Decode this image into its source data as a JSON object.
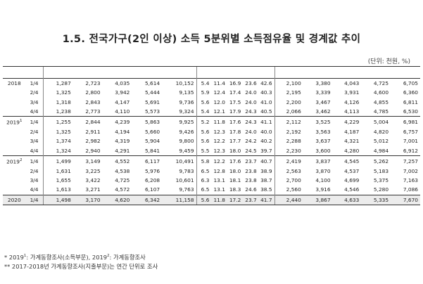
{
  "title": "1.5. 전국가구(2인 이상) 소득 5분위별 소득점유율 및 경계값 추이",
  "unit": "(단위: 천원, %)",
  "rows": [
    {
      "year": "2018",
      "sup": "",
      "qtr": "1/4",
      "vals": [
        "1,287",
        "2,723",
        "4,035",
        "5,614",
        "10,152",
        "5.4",
        "11.4",
        "16.9",
        "23.6",
        "42.6",
        "2,100",
        "3,380",
        "4,043",
        "4,725",
        "6,705"
      ]
    },
    {
      "year": "",
      "sup": "",
      "qtr": "2/4",
      "vals": [
        "1,325",
        "2,800",
        "3,942",
        "5,444",
        "9,135",
        "5.9",
        "12.4",
        "17.4",
        "24.0",
        "40.3",
        "2,195",
        "3,339",
        "3,931",
        "4,600",
        "6,360"
      ]
    },
    {
      "year": "",
      "sup": "",
      "qtr": "3/4",
      "vals": [
        "1,318",
        "2,843",
        "4,147",
        "5,691",
        "9,736",
        "5.6",
        "12.0",
        "17.5",
        "24.0",
        "41.0",
        "2,200",
        "3,467",
        "4,126",
        "4,855",
        "6,811"
      ]
    },
    {
      "year": "",
      "sup": "",
      "qtr": "4/4",
      "vals": [
        "1,238",
        "2,773",
        "4,110",
        "5,573",
        "9,324",
        "5.4",
        "12.1",
        "17.9",
        "24.3",
        "40.5",
        "2,066",
        "3,462",
        "4,113",
        "4,785",
        "6,530"
      ]
    },
    {
      "year": "2019",
      "sup": "1",
      "qtr": "1/4",
      "vals": [
        "1,255",
        "2,844",
        "4,239",
        "5,863",
        "9,925",
        "5.2",
        "11.8",
        "17.6",
        "24.3",
        "41.1",
        "2,112",
        "3,525",
        "4,229",
        "5,004",
        "6,981"
      ]
    },
    {
      "year": "",
      "sup": "",
      "qtr": "2/4",
      "vals": [
        "1,325",
        "2,911",
        "4,194",
        "5,660",
        "9,426",
        "5.6",
        "12.3",
        "17.8",
        "24.0",
        "40.0",
        "2,192",
        "3,563",
        "4,187",
        "4,820",
        "6,757"
      ]
    },
    {
      "year": "",
      "sup": "",
      "qtr": "3/4",
      "vals": [
        "1,374",
        "2,982",
        "4,319",
        "5,904",
        "9,800",
        "5.6",
        "12.2",
        "17.7",
        "24.2",
        "40.2",
        "2,288",
        "3,637",
        "4,321",
        "5,012",
        "7,001"
      ]
    },
    {
      "year": "",
      "sup": "",
      "qtr": "4/4",
      "vals": [
        "1,324",
        "2,940",
        "4,291",
        "5,841",
        "9,459",
        "5.5",
        "12.3",
        "18.0",
        "24.5",
        "39.7",
        "2,230",
        "3,600",
        "4,280",
        "4,984",
        "6,912"
      ]
    },
    {
      "year": "2019",
      "sup": "2",
      "qtr": "1/4",
      "vals": [
        "1,499",
        "3,149",
        "4,552",
        "6,117",
        "10,491",
        "5.8",
        "12.2",
        "17.6",
        "23.7",
        "40.7",
        "2,419",
        "3,837",
        "4,545",
        "5,262",
        "7,257"
      ]
    },
    {
      "year": "",
      "sup": "",
      "qtr": "2/4",
      "vals": [
        "1,631",
        "3,225",
        "4,538",
        "5,976",
        "9,783",
        "6.5",
        "12.8",
        "18.0",
        "23.8",
        "38.9",
        "2,563",
        "3,870",
        "4,537",
        "5,183",
        "7,002"
      ]
    },
    {
      "year": "",
      "sup": "",
      "qtr": "3/4",
      "vals": [
        "1,655",
        "3,422",
        "4,725",
        "6,208",
        "10,601",
        "6.3",
        "13.1",
        "18.1",
        "23.8",
        "38.7",
        "2,700",
        "4,100",
        "4,699",
        "5,375",
        "7,163"
      ]
    },
    {
      "year": "",
      "sup": "",
      "qtr": "4/4",
      "vals": [
        "1,613",
        "3,271",
        "4,572",
        "6,107",
        "9,763",
        "6.5",
        "13.1",
        "18.3",
        "24.6",
        "38.5",
        "2,560",
        "3,916",
        "4,546",
        "5,280",
        "7,086"
      ]
    },
    {
      "year": "2020",
      "sup": "",
      "qtr": "1/4",
      "vals": [
        "1,498",
        "3,170",
        "4,620",
        "6,342",
        "11,158",
        "5.6",
        "11.8",
        "17.2",
        "23.7",
        "41.7",
        "2,440",
        "3,867",
        "4,633",
        "5,335",
        "7,670"
      ]
    }
  ],
  "notes": {
    "n1_prefix": "* 2019",
    "n1_sup1": "1",
    "n1_mid": ": 가계동향조사(소득부문), 2019",
    "n1_sup2": "2",
    "n1_suffix": ": 가계동향조사",
    "n2": "** 2017-2018년 가계동향조사(지출부문)는 연간 단위로 조사"
  }
}
